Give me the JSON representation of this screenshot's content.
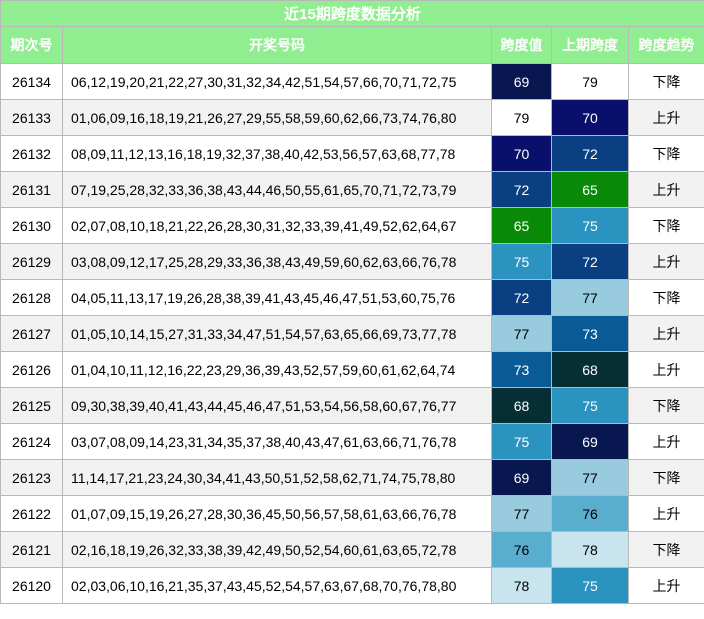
{
  "title": "近15期跨度数据分析",
  "header": [
    "期次号",
    "开奖号码",
    "跨度值",
    "上期跨度",
    "跨度趋势"
  ],
  "rows": [
    {
      "issue": "26134",
      "numbers": "06,12,19,20,21,22,27,30,31,32,34,42,51,54,57,66,70,71,72,75",
      "span": 69,
      "prev_span": 79,
      "trend": "下降",
      "span_color": "#08174f",
      "prev_span_color": "#ffffff"
    },
    {
      "issue": "26133",
      "numbers": "01,06,09,16,18,19,21,26,27,29,55,58,59,60,62,66,73,74,76,80",
      "span": 79,
      "prev_span": 70,
      "trend": "上升",
      "span_color": "#ffffff",
      "prev_span_color": "#08106b"
    },
    {
      "issue": "26132",
      "numbers": "08,09,11,12,13,16,18,19,32,37,38,40,42,53,56,57,63,68,77,78",
      "span": 70,
      "prev_span": 72,
      "trend": "下降",
      "span_color": "#08106b",
      "prev_span_color": "#0a3f82"
    },
    {
      "issue": "26131",
      "numbers": "07,19,25,28,32,33,36,38,43,44,46,50,55,61,65,70,71,72,73,79",
      "span": 72,
      "prev_span": 65,
      "trend": "上升",
      "span_color": "#0a3f82",
      "prev_span_color": "#088a08"
    },
    {
      "issue": "26130",
      "numbers": "02,07,08,10,18,21,22,26,28,30,31,32,33,39,41,49,52,62,64,67",
      "span": 65,
      "prev_span": 75,
      "trend": "下降",
      "span_color": "#088a08",
      "prev_span_color": "#2a93bf"
    },
    {
      "issue": "26129",
      "numbers": "03,08,09,12,17,25,28,29,33,36,38,43,49,59,60,62,63,66,76,78",
      "span": 75,
      "prev_span": 72,
      "trend": "上升",
      "span_color": "#2a93bf",
      "prev_span_color": "#0a3f82"
    },
    {
      "issue": "26128",
      "numbers": "04,05,11,13,17,19,26,28,38,39,41,43,45,46,47,51,53,60,75,76",
      "span": 72,
      "prev_span": 77,
      "trend": "下降",
      "span_color": "#0a3f82",
      "prev_span_color": "#98cbde"
    },
    {
      "issue": "26127",
      "numbers": "01,05,10,14,15,27,31,33,34,47,51,54,57,63,65,66,69,73,77,78",
      "span": 77,
      "prev_span": 73,
      "trend": "上升",
      "span_color": "#98cbde",
      "prev_span_color": "#0a5a96"
    },
    {
      "issue": "26126",
      "numbers": "01,04,10,11,12,16,22,23,29,36,39,43,52,57,59,60,61,62,64,74",
      "span": 73,
      "prev_span": 68,
      "trend": "上升",
      "span_color": "#0a5a96",
      "prev_span_color": "#062e35"
    },
    {
      "issue": "26125",
      "numbers": "09,30,38,39,40,41,43,44,45,46,47,51,53,54,56,58,60,67,76,77",
      "span": 68,
      "prev_span": 75,
      "trend": "下降",
      "span_color": "#062e35",
      "prev_span_color": "#2a93bf"
    },
    {
      "issue": "26124",
      "numbers": "03,07,08,09,14,23,31,34,35,37,38,40,43,47,61,63,66,71,76,78",
      "span": 75,
      "prev_span": 69,
      "trend": "上升",
      "span_color": "#2a93bf",
      "prev_span_color": "#08174f"
    },
    {
      "issue": "26123",
      "numbers": "11,14,17,21,23,24,30,34,41,43,50,51,52,58,62,71,74,75,78,80",
      "span": 69,
      "prev_span": 77,
      "trend": "下降",
      "span_color": "#08174f",
      "prev_span_color": "#98cbde"
    },
    {
      "issue": "26122",
      "numbers": "01,07,09,15,19,26,27,28,30,36,45,50,56,57,58,61,63,66,76,78",
      "span": 77,
      "prev_span": 76,
      "trend": "上升",
      "span_color": "#98cbde",
      "prev_span_color": "#5aaecd"
    },
    {
      "issue": "26121",
      "numbers": "02,16,18,19,26,32,33,38,39,42,49,50,52,54,60,61,63,65,72,78",
      "span": 76,
      "prev_span": 78,
      "trend": "下降",
      "span_color": "#5aaecd",
      "prev_span_color": "#c8e4ee"
    },
    {
      "issue": "26120",
      "numbers": "02,03,06,10,16,21,35,37,43,45,52,54,57,63,67,68,70,76,78,80",
      "span": 78,
      "prev_span": 75,
      "trend": "上升",
      "span_color": "#c8e4ee",
      "prev_span_color": "#2a93bf"
    }
  ]
}
